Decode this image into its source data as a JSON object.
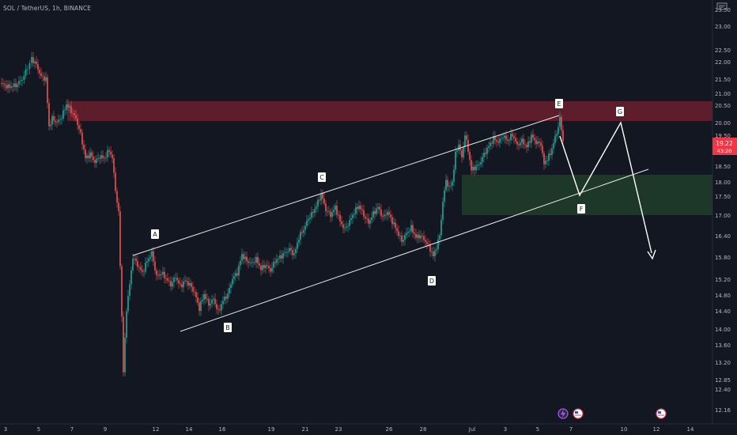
{
  "header": {
    "symbol": "SOL / TetherUS, 1h, BINANCE"
  },
  "price_axis": {
    "ticks": [
      "23.50",
      "23.00",
      "22.50",
      "22.00",
      "21.50",
      "21.00",
      "20.50",
      "20.00",
      "19.50",
      "19.00",
      "18.50",
      "18.00",
      "17.50",
      "17.00",
      "16.40",
      "15.80",
      "15.20",
      "14.80",
      "14.40",
      "14.00",
      "13.60",
      "13.20",
      "12.85",
      "12.40",
      "12.16"
    ],
    "current_price": "19.22",
    "countdown": "43:20"
  },
  "time_axis": {
    "ticks": [
      "3",
      "5",
      "7",
      "9",
      "12",
      "14",
      "16",
      "19",
      "21",
      "23",
      "26",
      "28",
      "Jul",
      "3",
      "5",
      "7",
      "10",
      "12",
      "14"
    ]
  },
  "annotations": {
    "labels": [
      "A",
      "B",
      "C",
      "D",
      "E",
      "F",
      "G"
    ]
  },
  "colors": {
    "background": "#131722",
    "up_candle": "#26a69a",
    "down_candle": "#ef5350",
    "resistance_zone": "#6b1f2b",
    "support_zone": "#1f3b2a",
    "price_badge": "#f23645",
    "lines": "#ffffff"
  },
  "icons": [
    "lightning-event-icon",
    "us-flag-event-icon",
    "us-flag-event-icon"
  ]
}
